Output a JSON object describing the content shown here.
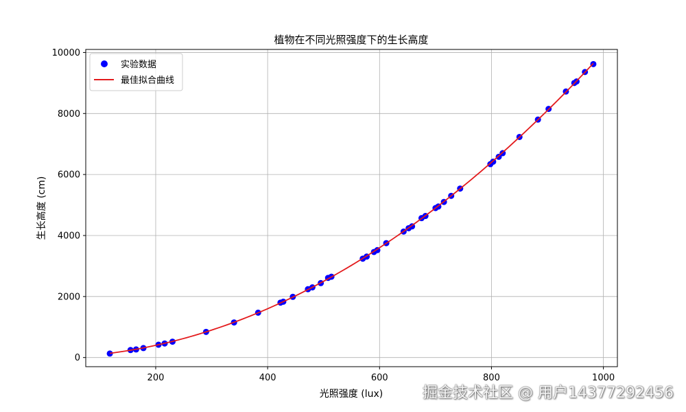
{
  "chart_data": {
    "type": "scatter",
    "title": "植物在不同光照强度下的生长高度",
    "xlabel": "光照强度 (lux)",
    "ylabel": "生长高度 (cm)",
    "xlim": [
      75,
      1025
    ],
    "ylim": [
      -300,
      10100
    ],
    "xticks": [
      200,
      400,
      600,
      800,
      1000
    ],
    "yticks": [
      0,
      2000,
      4000,
      6000,
      8000,
      10000
    ],
    "grid": true,
    "legend_position": "top-left",
    "series": [
      {
        "name": "实验数据",
        "kind": "scatter",
        "color": "#0000ff",
        "points": [
          [
            118,
            130
          ],
          [
            155,
            245
          ],
          [
            165,
            265
          ],
          [
            178,
            310
          ],
          [
            205,
            420
          ],
          [
            216,
            460
          ],
          [
            230,
            520
          ],
          [
            290,
            840
          ],
          [
            340,
            1150
          ],
          [
            383,
            1470
          ],
          [
            423,
            1800
          ],
          [
            428,
            1830
          ],
          [
            445,
            1990
          ],
          [
            472,
            2240
          ],
          [
            480,
            2300
          ],
          [
            495,
            2440
          ],
          [
            508,
            2610
          ],
          [
            514,
            2650
          ],
          [
            570,
            3240
          ],
          [
            577,
            3310
          ],
          [
            590,
            3460
          ],
          [
            596,
            3520
          ],
          [
            612,
            3750
          ],
          [
            643,
            4130
          ],
          [
            652,
            4240
          ],
          [
            658,
            4300
          ],
          [
            675,
            4570
          ],
          [
            682,
            4640
          ],
          [
            700,
            4900
          ],
          [
            705,
            4950
          ],
          [
            715,
            5100
          ],
          [
            728,
            5300
          ],
          [
            744,
            5540
          ],
          [
            798,
            6340
          ],
          [
            803,
            6420
          ],
          [
            813,
            6580
          ],
          [
            820,
            6700
          ],
          [
            850,
            7230
          ],
          [
            883,
            7800
          ],
          [
            902,
            8150
          ],
          [
            933,
            8720
          ],
          [
            948,
            9000
          ],
          [
            952,
            9050
          ],
          [
            967,
            9360
          ],
          [
            982,
            9620
          ]
        ]
      },
      {
        "name": "最佳拟合曲线",
        "kind": "line",
        "color": "#e31a1c",
        "fit": {
          "a": 0.01,
          "b": 0,
          "c": 0
        },
        "x_range": [
          118,
          982
        ]
      }
    ]
  },
  "watermark": "掘金技术社区 @ 用户14377292456"
}
